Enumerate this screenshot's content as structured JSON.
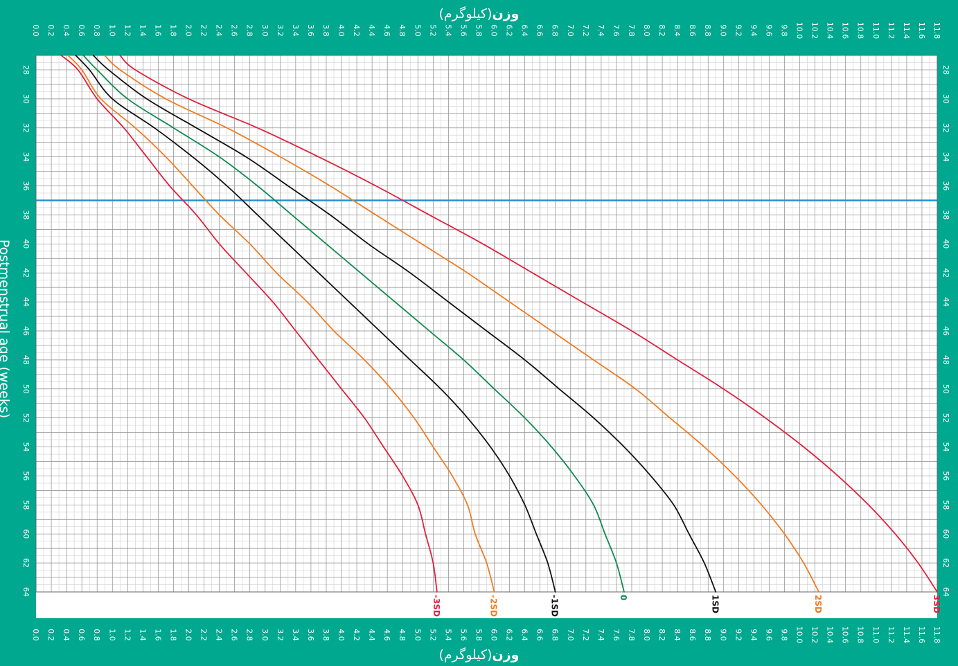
{
  "page": {
    "background": "#00a88f",
    "plot_background": "#ffffff",
    "grid_minor": "#cfcfcf",
    "grid_major": "#8a8a8a"
  },
  "x_axis_title": {
    "bold": "وزن",
    "normal": "(کیلوگرم)"
  },
  "y_axis_title": "Postmenstrual age (weeks)",
  "chart_data": {
    "type": "line",
    "x_axis": {
      "label": "وزن (کیلوگرم)",
      "lim": [
        0,
        11.8
      ],
      "tick_step": 0.2,
      "tick_decimals": 1,
      "positions": [
        "top",
        "bottom"
      ]
    },
    "y_axis": {
      "label": "Postmenstrual age (weeks)",
      "lim": [
        27,
        64
      ],
      "ticks": [
        28,
        30,
        32,
        34,
        36,
        38,
        40,
        42,
        44,
        46,
        48,
        50,
        52,
        54,
        56,
        58,
        60,
        62,
        64
      ],
      "positions": [
        "left",
        "right"
      ]
    },
    "grid": true,
    "reference_line": {
      "y": 37,
      "color": "#1e90d0"
    },
    "series": [
      {
        "name": "-3SD",
        "color": "#e0203c",
        "points": [
          [
            0.33,
            27
          ],
          [
            0.55,
            28
          ],
          [
            0.8,
            30
          ],
          [
            1.15,
            32
          ],
          [
            1.45,
            34
          ],
          [
            1.75,
            36
          ],
          [
            2.1,
            38
          ],
          [
            2.4,
            40
          ],
          [
            2.75,
            42
          ],
          [
            3.1,
            44
          ],
          [
            3.4,
            46
          ],
          [
            3.7,
            48
          ],
          [
            4.0,
            50
          ],
          [
            4.3,
            52
          ],
          [
            4.55,
            54
          ],
          [
            4.8,
            56
          ],
          [
            5.0,
            58
          ],
          [
            5.1,
            60
          ],
          [
            5.2,
            62
          ],
          [
            5.25,
            64
          ]
        ]
      },
      {
        "name": "-2SD",
        "color": "#f07c22",
        "points": [
          [
            0.42,
            27
          ],
          [
            0.6,
            28
          ],
          [
            0.85,
            30
          ],
          [
            1.3,
            32
          ],
          [
            1.7,
            34
          ],
          [
            2.05,
            36
          ],
          [
            2.4,
            38
          ],
          [
            2.8,
            40
          ],
          [
            3.15,
            42
          ],
          [
            3.55,
            44
          ],
          [
            3.9,
            46
          ],
          [
            4.3,
            48
          ],
          [
            4.65,
            50
          ],
          [
            4.95,
            52
          ],
          [
            5.2,
            54
          ],
          [
            5.45,
            56
          ],
          [
            5.65,
            58
          ],
          [
            5.75,
            60
          ],
          [
            5.9,
            62
          ],
          [
            6.0,
            64
          ]
        ]
      },
      {
        "name": "-1SD",
        "color": "#111111",
        "points": [
          [
            0.52,
            27
          ],
          [
            0.7,
            28
          ],
          [
            1.0,
            30
          ],
          [
            1.55,
            32
          ],
          [
            2.05,
            34
          ],
          [
            2.5,
            36
          ],
          [
            2.9,
            38
          ],
          [
            3.3,
            40
          ],
          [
            3.7,
            42
          ],
          [
            4.1,
            44
          ],
          [
            4.5,
            46
          ],
          [
            4.9,
            48
          ],
          [
            5.3,
            50
          ],
          [
            5.65,
            52
          ],
          [
            5.95,
            54
          ],
          [
            6.2,
            56
          ],
          [
            6.4,
            58
          ],
          [
            6.55,
            60
          ],
          [
            6.7,
            62
          ],
          [
            6.8,
            64
          ]
        ]
      },
      {
        "name": "0",
        "color": "#0f8a50",
        "points": [
          [
            0.62,
            27
          ],
          [
            0.8,
            28
          ],
          [
            1.2,
            30
          ],
          [
            1.8,
            32
          ],
          [
            2.4,
            34
          ],
          [
            2.9,
            36
          ],
          [
            3.35,
            38
          ],
          [
            3.8,
            40
          ],
          [
            4.25,
            42
          ],
          [
            4.7,
            44
          ],
          [
            5.15,
            46
          ],
          [
            5.6,
            48
          ],
          [
            6.0,
            50
          ],
          [
            6.4,
            52
          ],
          [
            6.75,
            54
          ],
          [
            7.05,
            56
          ],
          [
            7.3,
            58
          ],
          [
            7.45,
            60
          ],
          [
            7.6,
            62
          ],
          [
            7.7,
            64
          ]
        ]
      },
      {
        "name": "1SD",
        "color": "#111111",
        "points": [
          [
            0.75,
            27
          ],
          [
            0.95,
            28
          ],
          [
            1.45,
            30
          ],
          [
            2.1,
            32
          ],
          [
            2.75,
            34
          ],
          [
            3.3,
            36
          ],
          [
            3.85,
            38
          ],
          [
            4.35,
            40
          ],
          [
            4.9,
            42
          ],
          [
            5.4,
            44
          ],
          [
            5.9,
            46
          ],
          [
            6.4,
            48
          ],
          [
            6.85,
            50
          ],
          [
            7.3,
            52
          ],
          [
            7.7,
            54
          ],
          [
            8.05,
            56
          ],
          [
            8.35,
            58
          ],
          [
            8.55,
            60
          ],
          [
            8.75,
            62
          ],
          [
            8.9,
            64
          ]
        ]
      },
      {
        "name": "2SD",
        "color": "#f07c22",
        "points": [
          [
            0.9,
            27
          ],
          [
            1.1,
            28
          ],
          [
            1.7,
            30
          ],
          [
            2.5,
            32
          ],
          [
            3.2,
            34
          ],
          [
            3.85,
            36
          ],
          [
            4.45,
            38
          ],
          [
            5.05,
            40
          ],
          [
            5.65,
            42
          ],
          [
            6.2,
            44
          ],
          [
            6.75,
            46
          ],
          [
            7.3,
            48
          ],
          [
            7.85,
            50
          ],
          [
            8.3,
            52
          ],
          [
            8.75,
            54
          ],
          [
            9.15,
            56
          ],
          [
            9.5,
            58
          ],
          [
            9.8,
            60
          ],
          [
            10.05,
            62
          ],
          [
            10.25,
            64
          ]
        ]
      },
      {
        "name": "3SD",
        "color": "#e0203c",
        "points": [
          [
            1.1,
            27
          ],
          [
            1.3,
            28
          ],
          [
            2.0,
            30
          ],
          [
            2.9,
            32
          ],
          [
            3.7,
            34
          ],
          [
            4.45,
            36
          ],
          [
            5.15,
            38
          ],
          [
            5.85,
            40
          ],
          [
            6.5,
            42
          ],
          [
            7.15,
            44
          ],
          [
            7.8,
            46
          ],
          [
            8.4,
            48
          ],
          [
            9.0,
            50
          ],
          [
            9.55,
            52
          ],
          [
            10.05,
            54
          ],
          [
            10.5,
            56
          ],
          [
            10.9,
            58
          ],
          [
            11.25,
            60
          ],
          [
            11.55,
            62
          ],
          [
            11.8,
            64
          ]
        ]
      }
    ]
  }
}
